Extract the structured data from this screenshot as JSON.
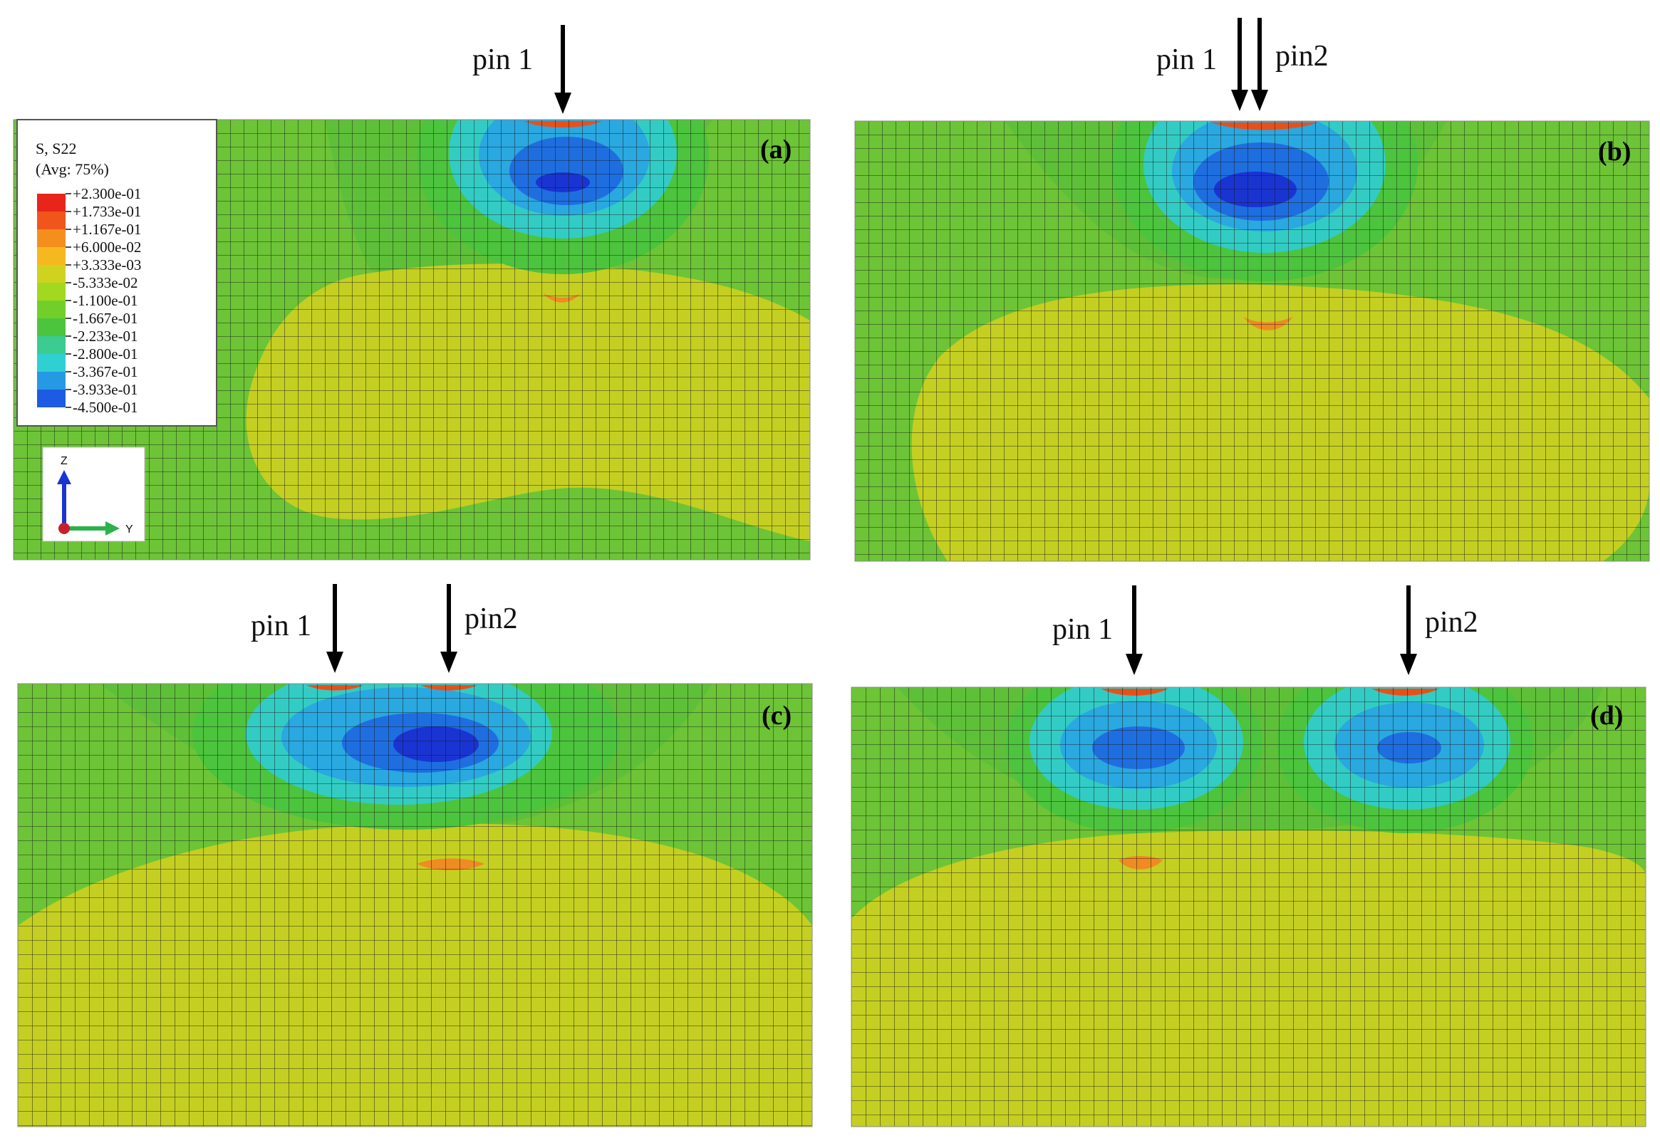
{
  "figure": {
    "panels": [
      {
        "tag": "(a)",
        "pins": [
          {
            "label": "pin 1"
          }
        ]
      },
      {
        "tag": "(b)",
        "pins": [
          {
            "label": "pin 1"
          },
          {
            "label": "pin2"
          }
        ]
      },
      {
        "tag": "(c)",
        "pins": [
          {
            "label": "pin 1"
          },
          {
            "label": "pin2"
          }
        ]
      },
      {
        "tag": "(d)",
        "pins": [
          {
            "label": "pin 1"
          },
          {
            "label": "pin2"
          }
        ]
      }
    ],
    "legend": {
      "title_line1": "S, S22",
      "title_line2": "(Avg: 75%)",
      "values": [
        "+2.300e-01",
        "+1.733e-01",
        "+1.167e-01",
        "+6.000e-02",
        "+3.333e-03",
        "-5.333e-02",
        "-1.100e-01",
        "-1.667e-01",
        "-2.233e-01",
        "-2.800e-01",
        "-3.367e-01",
        "-3.933e-01",
        "-4.500e-01"
      ],
      "colors": [
        "#e8251a",
        "#f0561c",
        "#f48f1e",
        "#f5b81f",
        "#cfd21f",
        "#a2d81f",
        "#72cf2a",
        "#4cc43d",
        "#3ccb91",
        "#2fd0d2",
        "#2699e4",
        "#1e5be3",
        "#1a28d6"
      ]
    },
    "triad": {
      "z_label": "Z",
      "y_label": "Y"
    },
    "colors": {
      "field_green": "#6cc436",
      "field_yellow": "#c4cf22",
      "cyan": "#33ccc4",
      "light_blue": "#2aa8e0",
      "blue": "#1f6ee0",
      "dark_blue": "#1a34d2",
      "orange": "#f08a22",
      "red_orange": "#e8501a",
      "mesh": "#1a1a1a"
    }
  }
}
